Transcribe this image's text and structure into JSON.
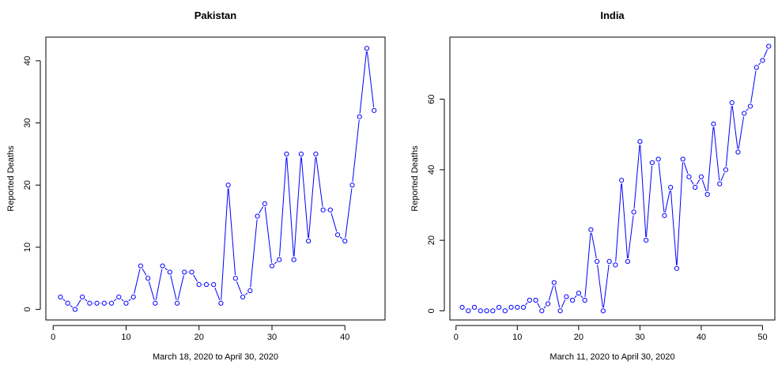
{
  "chart_data": [
    {
      "type": "line",
      "title": "Pakistan",
      "xlabel": "March 18, 2020 to April 30, 2020",
      "ylabel": "Reported Deaths",
      "xlim": [
        -1,
        45.5
      ],
      "ylim": [
        -1.7,
        43.8
      ],
      "xticks": [
        0,
        10,
        20,
        30,
        40
      ],
      "yticks": [
        0,
        10,
        20,
        30,
        40
      ],
      "series_color": "#0000ff",
      "x": [
        1,
        2,
        3,
        4,
        5,
        6,
        7,
        8,
        9,
        10,
        11,
        12,
        13,
        14,
        15,
        16,
        17,
        18,
        19,
        20,
        21,
        22,
        23,
        24,
        25,
        26,
        27,
        28,
        29,
        30,
        31,
        32,
        33,
        34,
        35,
        36,
        37,
        38,
        39,
        40,
        41,
        42,
        43,
        44
      ],
      "y": [
        2,
        1,
        0,
        2,
        1,
        1,
        1,
        1,
        2,
        1,
        2,
        7,
        5,
        1,
        7,
        6,
        1,
        6,
        6,
        4,
        4,
        4,
        1,
        20,
        5,
        2,
        3,
        15,
        17,
        7,
        8,
        25,
        8,
        25,
        11,
        25,
        16,
        16,
        12,
        11,
        20,
        31,
        42,
        32
      ]
    },
    {
      "type": "line",
      "title": "India",
      "xlabel": "March 11, 2020 to April 30, 2020",
      "ylabel": "Reported Deaths",
      "xlim": [
        -1,
        52
      ],
      "ylim": [
        -2.6,
        77.6
      ],
      "xticks": [
        0,
        10,
        20,
        30,
        40,
        50
      ],
      "yticks": [
        0,
        20,
        40,
        60
      ],
      "series_color": "#0000ff",
      "x": [
        1,
        2,
        3,
        4,
        5,
        6,
        7,
        8,
        9,
        10,
        11,
        12,
        13,
        14,
        15,
        16,
        17,
        18,
        19,
        20,
        21,
        22,
        23,
        24,
        25,
        26,
        27,
        28,
        29,
        30,
        31,
        32,
        33,
        34,
        35,
        36,
        37,
        38,
        39,
        40,
        41,
        42,
        43,
        44,
        45,
        46,
        47,
        48,
        49,
        50,
        51
      ],
      "y": [
        1,
        0,
        1,
        0,
        0,
        0,
        1,
        0,
        1,
        1,
        1,
        3,
        3,
        0,
        2,
        8,
        0,
        4,
        3,
        5,
        3,
        23,
        14,
        0,
        14,
        13,
        37,
        14,
        28,
        48,
        20,
        42,
        43,
        27,
        35,
        12,
        43,
        38,
        35,
        38,
        33,
        53,
        36,
        40,
        59,
        45,
        56,
        58,
        69,
        71,
        75
      ]
    }
  ]
}
